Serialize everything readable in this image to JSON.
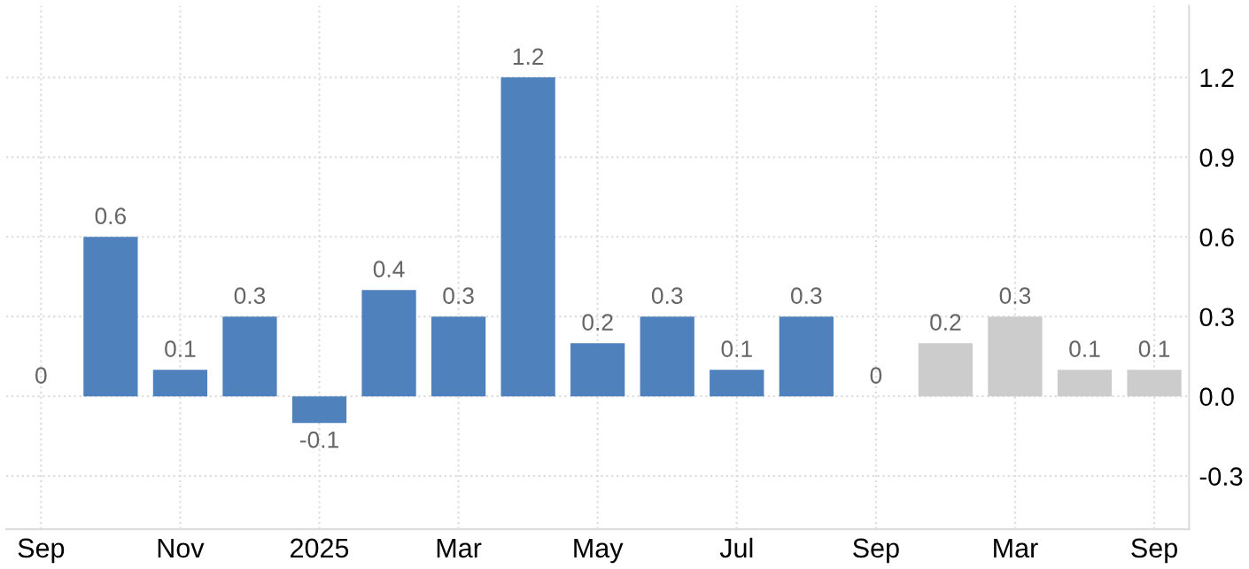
{
  "chart_data": {
    "type": "bar",
    "categories": [
      "Sep",
      null,
      "Nov",
      null,
      "2025",
      null,
      "Mar",
      null,
      "May",
      null,
      "Jul",
      null,
      "Sep",
      null,
      "Mar",
      null,
      "Sep"
    ],
    "values": [
      0,
      0.6,
      0.1,
      0.3,
      -0.1,
      0.4,
      0.3,
      1.2,
      0.2,
      0.3,
      0.1,
      0.3,
      0,
      0.2,
      0.3,
      0.1,
      0.1
    ],
    "colors": [
      "#4f81bd",
      "#4f81bd",
      "#4f81bd",
      "#4f81bd",
      "#4f81bd",
      "#4f81bd",
      "#4f81bd",
      "#4f81bd",
      "#4f81bd",
      "#4f81bd",
      "#4f81bd",
      "#4f81bd",
      "#4f81bd",
      "#cccccc",
      "#cccccc",
      "#cccccc",
      "#cccccc"
    ],
    "data_labels": true,
    "ylim": [
      -0.5,
      1.47
    ],
    "yticks": [
      -0.3,
      {
        "value": 0,
        "label": "0.0"
      },
      0.3,
      0.6,
      0.9,
      1.2
    ],
    "grid": true
  }
}
